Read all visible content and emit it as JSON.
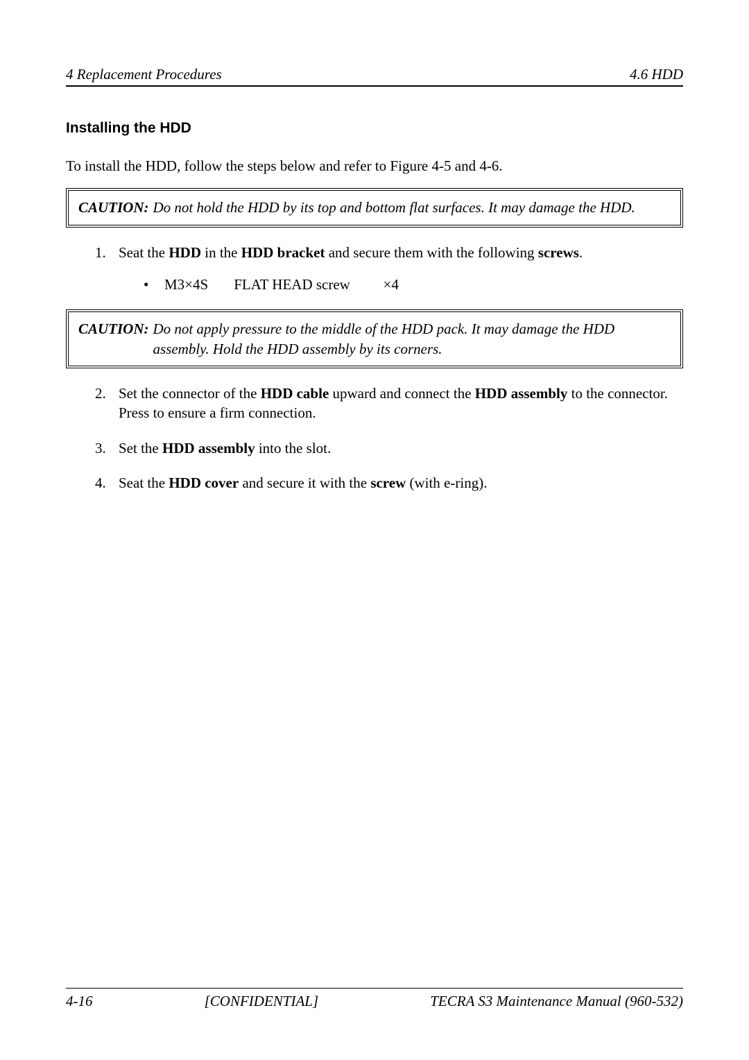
{
  "header": {
    "left": "4 Replacement Procedures",
    "right": "4.6  HDD"
  },
  "subheading": "Installing the HDD",
  "intro": "To install the HDD, follow the steps below and refer to Figure 4-5 and 4-6.",
  "caution1": {
    "label": "CAUTION:",
    "text": "Do not hold the HDD by its top and bottom flat surfaces.  It may damage the HDD."
  },
  "step1": {
    "num": "1.",
    "pre": "Seat the ",
    "b1": "HDD",
    "mid1": " in the ",
    "b2": "HDD bracket",
    "mid2": " and secure them with the following ",
    "b3": "screws",
    "post": ".",
    "bullet": {
      "code": "M3×4S",
      "name": "FLAT HEAD screw",
      "qty": "×4"
    }
  },
  "caution2": {
    "label": "CAUTION:",
    "text": "Do not apply pressure to the middle of the HDD pack.  It may damage the HDD assembly. Hold the HDD assembly by its corners."
  },
  "step2": {
    "num": "2.",
    "pre": "Set the connector of the ",
    "b1": "HDD cable",
    "mid1": " upward and connect the ",
    "b2": "HDD assembly",
    "post": " to the connector. Press to ensure a firm connection."
  },
  "step3": {
    "num": "3.",
    "pre": "Set the ",
    "b1": "HDD assembly",
    "post": " into the slot."
  },
  "step4": {
    "num": "4.",
    "pre": "Seat the ",
    "b1": "HDD cover",
    "mid1": " and secure it with the ",
    "b2": "screw",
    "post": " (with e-ring)."
  },
  "footer": {
    "left": "4-16",
    "center": "[CONFIDENTIAL]",
    "right": "TECRA S3 Maintenance Manual (960-532)"
  }
}
